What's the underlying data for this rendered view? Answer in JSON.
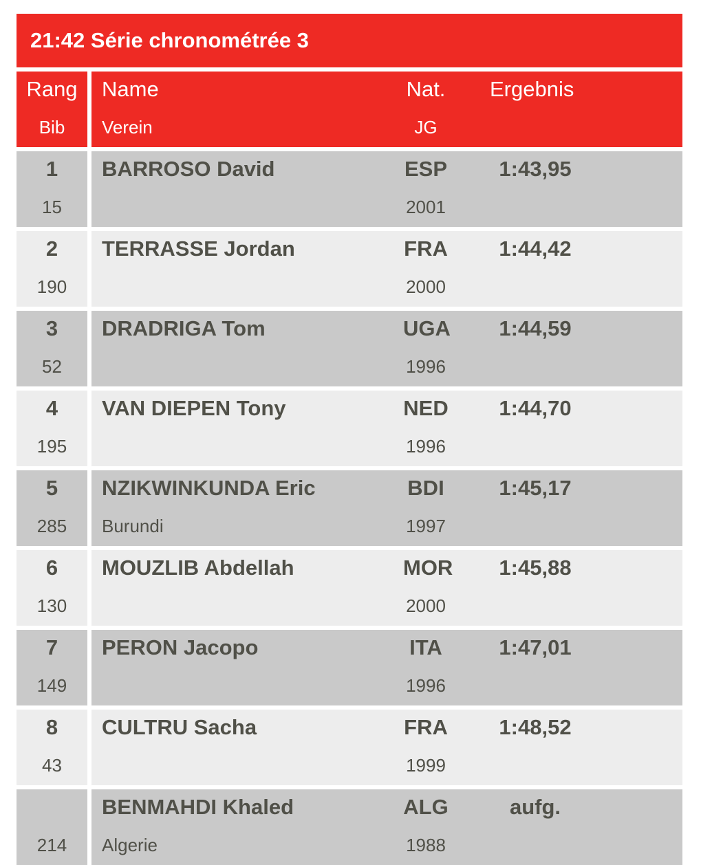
{
  "header": {
    "title": "21:42 Série chronométrée 3",
    "columns": {
      "rang": "Rang",
      "bib": "Bib",
      "name": "Name",
      "verein": "Verein",
      "nat": "Nat.",
      "jg": "JG",
      "ergebnis": "Ergebnis"
    }
  },
  "rows": [
    {
      "rang": "1",
      "bib": "15",
      "name": "BARROSO David",
      "verein": "",
      "nat": "ESP",
      "jg": "2001",
      "ergebnis": "1:43,95"
    },
    {
      "rang": "2",
      "bib": "190",
      "name": "TERRASSE Jordan",
      "verein": "",
      "nat": "FRA",
      "jg": "2000",
      "ergebnis": "1:44,42"
    },
    {
      "rang": "3",
      "bib": "52",
      "name": "DRADRIGA Tom",
      "verein": "",
      "nat": "UGA",
      "jg": "1996",
      "ergebnis": "1:44,59"
    },
    {
      "rang": "4",
      "bib": "195",
      "name": "VAN DIEPEN Tony",
      "verein": "",
      "nat": "NED",
      "jg": "1996",
      "ergebnis": "1:44,70"
    },
    {
      "rang": "5",
      "bib": "285",
      "name": "NZIKWINKUNDA Eric",
      "verein": "Burundi",
      "nat": "BDI",
      "jg": "1997",
      "ergebnis": "1:45,17"
    },
    {
      "rang": "6",
      "bib": "130",
      "name": "MOUZLIB Abdellah",
      "verein": "",
      "nat": "MOR",
      "jg": "2000",
      "ergebnis": "1:45,88"
    },
    {
      "rang": "7",
      "bib": "149",
      "name": "PERON Jacopo",
      "verein": "",
      "nat": "ITA",
      "jg": "1996",
      "ergebnis": "1:47,01"
    },
    {
      "rang": "8",
      "bib": "43",
      "name": "CULTRU Sacha",
      "verein": "",
      "nat": "FRA",
      "jg": "1999",
      "ergebnis": "1:48,52"
    },
    {
      "rang": "",
      "bib": "214",
      "name": "BENMAHDI Khaled",
      "verein": "Algerie",
      "nat": "ALG",
      "jg": "1988",
      "ergebnis": "aufg."
    }
  ],
  "colors": {
    "accent": "#ee2a24",
    "row_dark": "#c9c9c9",
    "row_light": "#ededed",
    "text": "#505048"
  }
}
